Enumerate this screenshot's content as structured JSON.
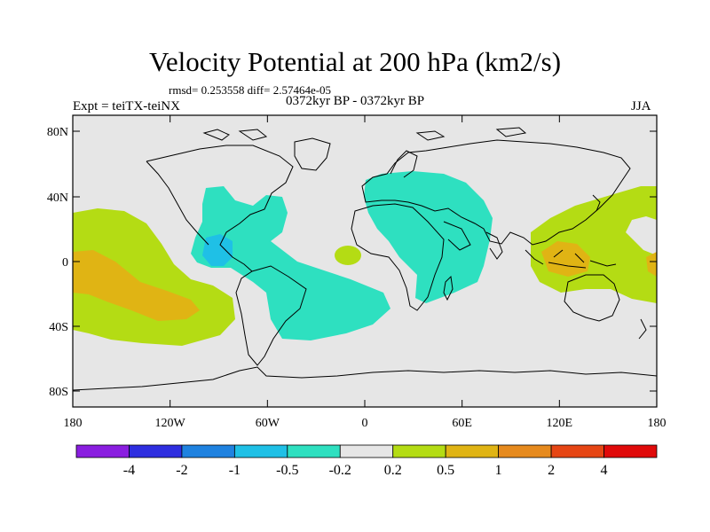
{
  "title": "Velocity Potential at 200 hPa (km2/s)",
  "stats_line": "rmsd= 0.253558 diff= 2.57464e-05",
  "left_label": "Expt = teiTX-teiNX",
  "center_label": "0372kyr BP - 0372kyr BP",
  "right_label": "JJA",
  "lat_ticks": [
    "80N",
    "40N",
    "0",
    "40S",
    "80S"
  ],
  "lon_ticks": [
    "180",
    "120W",
    "60W",
    "0",
    "60E",
    "120E",
    "180"
  ],
  "colorbar": {
    "colors": [
      "#8a1ee0",
      "#2e2ee0",
      "#1f82e0",
      "#1fc0e6",
      "#2ee0c0",
      "#e6e6e6",
      "#b4dc14",
      "#e0b414",
      "#e68a1e",
      "#e64614",
      "#e00a0a"
    ],
    "labels": [
      "-4",
      "-2",
      "-1",
      "-0.5",
      "-0.2",
      "0.2",
      "0.5",
      "1",
      "2",
      "4"
    ]
  },
  "palette": {
    "neutral": "#e6e6e6",
    "neg_weak": "#2ee0c0",
    "neg_mid": "#1fc0e6",
    "pos_weak": "#b4dc14",
    "pos_mid": "#e0b414"
  }
}
